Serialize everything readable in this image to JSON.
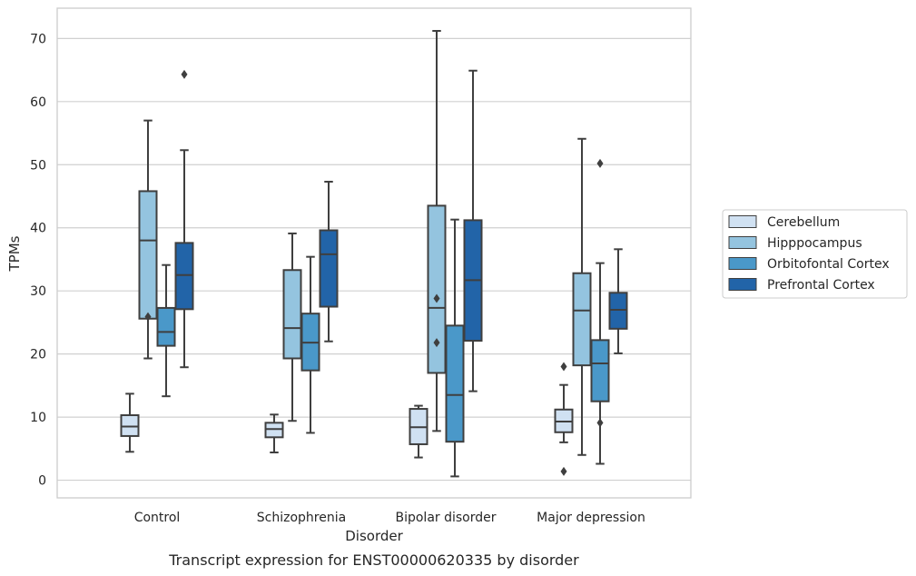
{
  "chart_data": {
    "type": "box",
    "title": "",
    "caption": "Transcript expression for ENST00000620335 by disorder",
    "xlabel": "Disorder",
    "ylabel": "TPMs",
    "ylim": [
      -2.8,
      74.8
    ],
    "yticks": [
      0,
      10,
      20,
      30,
      40,
      50,
      60,
      70
    ],
    "grid": "horizontal",
    "legend_position": "right",
    "categories": [
      "Control",
      "Schizophrenia",
      "Bipolar disorder",
      "Major depression"
    ],
    "series": [
      {
        "name": "Cerebellum",
        "color": "#d0e1f2",
        "boxes": [
          {
            "whisker_low": 4.5,
            "q1": 7.0,
            "median": 8.5,
            "q3": 10.3,
            "whisker_high": 13.7,
            "outliers": []
          },
          {
            "whisker_low": 4.4,
            "q1": 6.8,
            "median": 8.1,
            "q3": 9.1,
            "whisker_high": 10.4,
            "outliers": []
          },
          {
            "whisker_low": 3.6,
            "q1": 5.7,
            "median": 8.4,
            "q3": 11.3,
            "whisker_high": 11.8,
            "outliers": []
          },
          {
            "whisker_low": 6.0,
            "q1": 7.6,
            "median": 9.3,
            "q3": 11.2,
            "whisker_high": 15.1,
            "outliers": [
              18.0,
              1.4
            ]
          }
        ]
      },
      {
        "name": "Hipppocampus",
        "color": "#94c4df",
        "boxes": [
          {
            "whisker_low": 19.3,
            "q1": 25.6,
            "median": 38.0,
            "q3": 45.8,
            "whisker_high": 57.0,
            "outliers": [
              25.9
            ]
          },
          {
            "whisker_low": 9.4,
            "q1": 19.3,
            "median": 24.1,
            "q3": 33.3,
            "whisker_high": 39.1,
            "outliers": []
          },
          {
            "whisker_low": 7.8,
            "q1": 17.0,
            "median": 27.3,
            "q3": 43.5,
            "whisker_high": 71.2,
            "outliers": [
              28.8,
              21.8
            ]
          },
          {
            "whisker_low": 4.0,
            "q1": 18.2,
            "median": 26.9,
            "q3": 32.8,
            "whisker_high": 54.1,
            "outliers": []
          }
        ]
      },
      {
        "name": "Orbitofontal Cortex",
        "color": "#4a98c9",
        "boxes": [
          {
            "whisker_low": 13.3,
            "q1": 21.3,
            "median": 23.5,
            "q3": 27.3,
            "whisker_high": 34.1,
            "outliers": []
          },
          {
            "whisker_low": 7.5,
            "q1": 17.4,
            "median": 21.8,
            "q3": 26.4,
            "whisker_high": 35.4,
            "outliers": []
          },
          {
            "whisker_low": 0.6,
            "q1": 6.1,
            "median": 13.5,
            "q3": 24.5,
            "whisker_high": 41.3,
            "outliers": []
          },
          {
            "whisker_low": 2.6,
            "q1": 12.5,
            "median": 18.5,
            "q3": 22.2,
            "whisker_high": 34.4,
            "outliers": [
              50.2,
              9.1
            ]
          }
        ]
      },
      {
        "name": "Prefrontal Cortex",
        "color": "#2264a8",
        "boxes": [
          {
            "whisker_low": 17.9,
            "q1": 27.1,
            "median": 32.5,
            "q3": 37.6,
            "whisker_high": 52.3,
            "outliers": [
              64.3
            ]
          },
          {
            "whisker_low": 22.0,
            "q1": 27.5,
            "median": 35.8,
            "q3": 39.6,
            "whisker_high": 47.3,
            "outliers": []
          },
          {
            "whisker_low": 14.1,
            "q1": 22.1,
            "median": 31.7,
            "q3": 41.2,
            "whisker_high": 64.9,
            "outliers": []
          },
          {
            "whisker_low": 20.1,
            "q1": 24.0,
            "median": 27.0,
            "q3": 29.7,
            "whisker_high": 36.6,
            "outliers": []
          }
        ]
      }
    ]
  }
}
